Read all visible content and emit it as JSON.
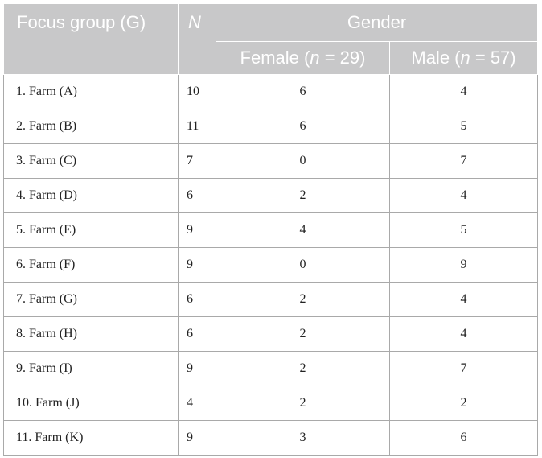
{
  "header": {
    "group_label": "Focus group (G)",
    "n_label": "N",
    "gender_label": "Gender",
    "female_label": "Female (",
    "female_n": "n",
    "female_count": " = 29)",
    "male_label": "Male (",
    "male_n": "n",
    "male_count": " = 57)"
  },
  "rows": [
    {
      "group": "1. Farm (A)",
      "n": "10",
      "female": "6",
      "male": "4"
    },
    {
      "group": "2. Farm (B)",
      "n": "11",
      "female": "6",
      "male": "5"
    },
    {
      "group": "3. Farm (C)",
      "n": "7",
      "female": "0",
      "male": "7"
    },
    {
      "group": "4. Farm (D)",
      "n": "6",
      "female": "2",
      "male": "4"
    },
    {
      "group": "5. Farm (E)",
      "n": "9",
      "female": "4",
      "male": "5"
    },
    {
      "group": "6. Farm (F)",
      "n": "9",
      "female": "0",
      "male": "9"
    },
    {
      "group": "7. Farm (G)",
      "n": "6",
      "female": "2",
      "male": "4"
    },
    {
      "group": "8. Farm (H)",
      "n": "6",
      "female": "2",
      "male": "4"
    },
    {
      "group": "9. Farm (I)",
      "n": "9",
      "female": "2",
      "male": "7"
    },
    {
      "group": "10. Farm (J)",
      "n": "4",
      "female": "2",
      "male": "2"
    },
    {
      "group": "11. Farm (K)",
      "n": "9",
      "female": "3",
      "male": "6"
    }
  ],
  "colors": {
    "header_bg": "#c8c8c9",
    "header_text": "#ffffff",
    "grid": "#a9a9a9"
  }
}
